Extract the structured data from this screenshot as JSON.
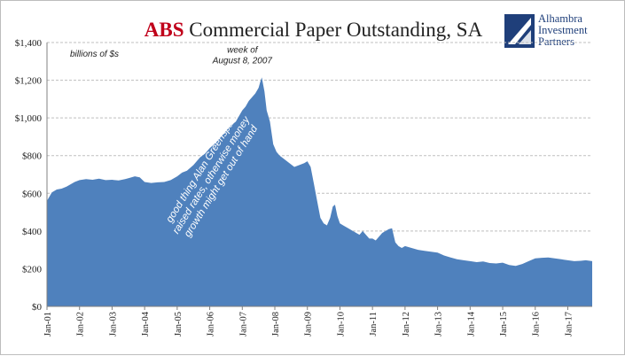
{
  "title": {
    "highlight": "ABS",
    "rest": " Commercial Paper Outstanding, SA"
  },
  "logo": {
    "text": "Alhambra\nInvestment\nPartners",
    "icon": "alhambra-logo-icon",
    "color": "#1f3f7a"
  },
  "colors": {
    "title_highlight": "#c0001a",
    "area_fill": "#4f81bd",
    "gridline": "#bfbfbf",
    "callout_text": "#ffffff"
  },
  "chart_data": {
    "type": "area",
    "title": "ABS Commercial Paper Outstanding, SA",
    "unit_label": "billions of $s",
    "xlabel": "",
    "ylabel": "",
    "ylim": [
      0,
      1400
    ],
    "yticks": [
      0,
      200,
      400,
      600,
      800,
      1000,
      1200,
      1400
    ],
    "ytick_labels": [
      "$0",
      "$200",
      "$400",
      "$600",
      "$800",
      "$1,000",
      "$1,200",
      "$1,400"
    ],
    "xlim": [
      2001.0,
      2017.75
    ],
    "xticks": [
      2001,
      2002,
      2003,
      2004,
      2005,
      2006,
      2007,
      2008,
      2009,
      2010,
      2011,
      2012,
      2013,
      2014,
      2015,
      2016,
      2017
    ],
    "xtick_labels": [
      "Jan-01",
      "Jan-02",
      "Jan-03",
      "Jan-04",
      "Jan-05",
      "Jan-06",
      "Jan-07",
      "Jan-08",
      "Jan-09",
      "Jan-10",
      "Jan-11",
      "Jan-12",
      "Jan-13",
      "Jan-14",
      "Jan-15",
      "Jan-16",
      "Jan-17"
    ],
    "grid": true,
    "series": [
      {
        "x": [
          2001.0,
          2001.05,
          2001.15,
          2001.3,
          2001.45,
          2001.6,
          2001.75,
          2001.85,
          2002.0,
          2002.2,
          2002.4,
          2002.6,
          2002.8,
          2003.0,
          2003.2,
          2003.4,
          2003.55,
          2003.7,
          2003.85,
          2004.0,
          2004.2,
          2004.4,
          2004.6,
          2004.8,
          2005.0,
          2005.15,
          2005.3,
          2005.5,
          2005.7,
          2005.85,
          2006.0,
          2006.2,
          2006.35,
          2006.5,
          2006.65,
          2006.8,
          2006.9,
          2007.0,
          2007.1,
          2007.2,
          2007.3,
          2007.4,
          2007.5,
          2007.55,
          2007.6,
          2007.68,
          2007.75,
          2007.85,
          2007.95,
          2008.05,
          2008.15,
          2008.3,
          2008.45,
          2008.6,
          2008.75,
          2008.9,
          2009.0,
          2009.1,
          2009.2,
          2009.3,
          2009.4,
          2009.5,
          2009.6,
          2009.7,
          2009.78,
          2009.85,
          2009.92,
          2010.0,
          2010.1,
          2010.2,
          2010.3,
          2010.4,
          2010.5,
          2010.6,
          2010.7,
          2010.8,
          2010.9,
          2011.0,
          2011.1,
          2011.2,
          2011.3,
          2011.4,
          2011.5,
          2011.6,
          2011.7,
          2011.8,
          2011.9,
          2012.0,
          2012.2,
          2012.4,
          2012.6,
          2012.8,
          2013.0,
          2013.2,
          2013.4,
          2013.6,
          2013.8,
          2014.0,
          2014.2,
          2014.4,
          2014.6,
          2014.8,
          2015.0,
          2015.2,
          2015.4,
          2015.6,
          2015.8,
          2016.0,
          2016.2,
          2016.4,
          2016.6,
          2016.8,
          2017.0,
          2017.2,
          2017.4,
          2017.55,
          2017.75
        ],
        "values": [
          560,
          575,
          605,
          620,
          625,
          635,
          650,
          660,
          670,
          675,
          672,
          678,
          670,
          672,
          668,
          675,
          682,
          690,
          685,
          660,
          655,
          658,
          660,
          670,
          690,
          710,
          720,
          750,
          790,
          810,
          840,
          870,
          900,
          930,
          960,
          980,
          1010,
          1040,
          1060,
          1090,
          1110,
          1130,
          1160,
          1190,
          1215,
          1140,
          1040,
          980,
          860,
          820,
          800,
          780,
          760,
          740,
          750,
          760,
          770,
          740,
          650,
          560,
          470,
          440,
          430,
          470,
          530,
          540,
          480,
          440,
          430,
          420,
          410,
          400,
          390,
          380,
          400,
          380,
          360,
          360,
          350,
          370,
          390,
          400,
          410,
          415,
          340,
          320,
          310,
          320,
          310,
          300,
          295,
          290,
          285,
          270,
          260,
          250,
          245,
          240,
          235,
          238,
          230,
          228,
          232,
          220,
          215,
          225,
          240,
          255,
          258,
          260,
          255,
          250,
          245,
          240,
          242,
          245,
          240
        ]
      }
    ],
    "annotations": [
      {
        "text": "week of\nAugust 8, 2007",
        "x": 2007.6,
        "y": 1215
      },
      {
        "text": "good thing Alan Greenspan\nraised rates, otherwise money\ngrowth might get out of hand",
        "x": 2006.1,
        "y": 690
      }
    ]
  }
}
